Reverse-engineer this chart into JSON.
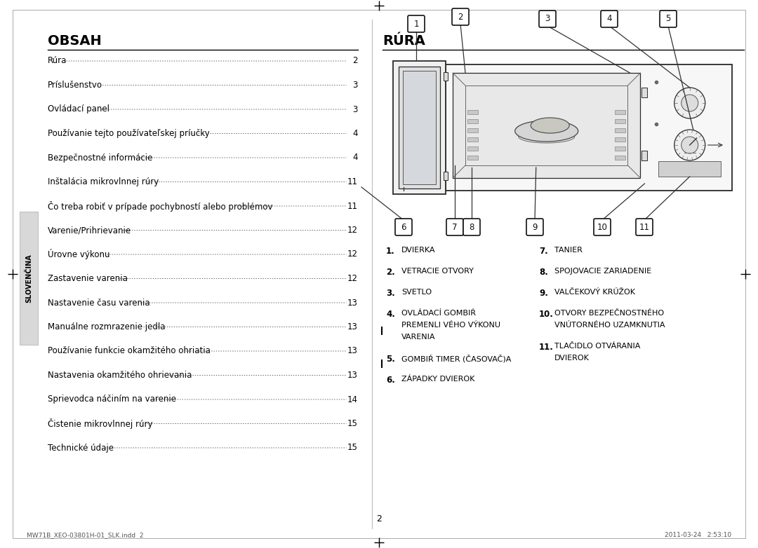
{
  "bg_color": "#ffffff",
  "left_title": "OBSAH",
  "right_title": "RÚRA",
  "toc_items": [
    [
      "Rúra",
      "2"
    ],
    [
      "Príslušenstvo",
      "3"
    ],
    [
      "Ovládací panel",
      "3"
    ],
    [
      "Používanie tejto používateľskej príučky",
      "4"
    ],
    [
      "Bezpečnostné informácie",
      "4"
    ],
    [
      "Inštalácia mikrovlnnej rúry",
      "11"
    ],
    [
      "Čo treba robiť v prípade pochybností alebo problémov",
      "11"
    ],
    [
      "Varenie/Prihrievanie",
      "12"
    ],
    [
      "Úrovne výkonu",
      "12"
    ],
    [
      "Zastavenie varenia",
      "12"
    ],
    [
      "Nastavenie času varenia",
      "13"
    ],
    [
      "Manuálne rozmrazenie jedla",
      "13"
    ],
    [
      "Používanie funkcie okamžitého ohriatia",
      "13"
    ],
    [
      "Nastavenia okamžitého ohrievania",
      "13"
    ],
    [
      "Sprievodca náčiním na varenie",
      "14"
    ],
    [
      "Čistenie mikrovlnnej rúry",
      "15"
    ],
    [
      "Technické údaje",
      "15"
    ]
  ],
  "labels_left": [
    [
      "1.",
      "DVIERKA"
    ],
    [
      "2.",
      "VETRACIE OTVORY"
    ],
    [
      "3.",
      "SVETLO"
    ],
    [
      "4.",
      "OVLÁDACÍ GOMBIŔ",
      "PREMENLI VÉHO VÝKONU",
      "VARENIA"
    ],
    [
      "5.",
      "GOMBIŔ TIMER (ČASOVAČ)A"
    ],
    [
      "6.",
      "ZÁPADKY DVIEROK"
    ]
  ],
  "labels_right": [
    [
      "7.",
      "TANIER"
    ],
    [
      "8.",
      "SPOJOVACIE ZARIADENIE"
    ],
    [
      "9.",
      "VALČEKOVÝ KRÚŽOK"
    ],
    [
      "10.",
      "OTVORY BEZPEČNOSTNÉHO",
      "VNÚTORNÉHO UZAMKNUTIA"
    ],
    [
      "11.",
      "TLAČIDLO OTVÁRANIA",
      "DVIEROK"
    ]
  ],
  "sidebar_text": "SLOVENČINA",
  "page_number": "2",
  "footer_left": "MW71B_XEO-03801H-01_SLK.indd  2",
  "footer_right": "2011-03-24   2:53:10"
}
